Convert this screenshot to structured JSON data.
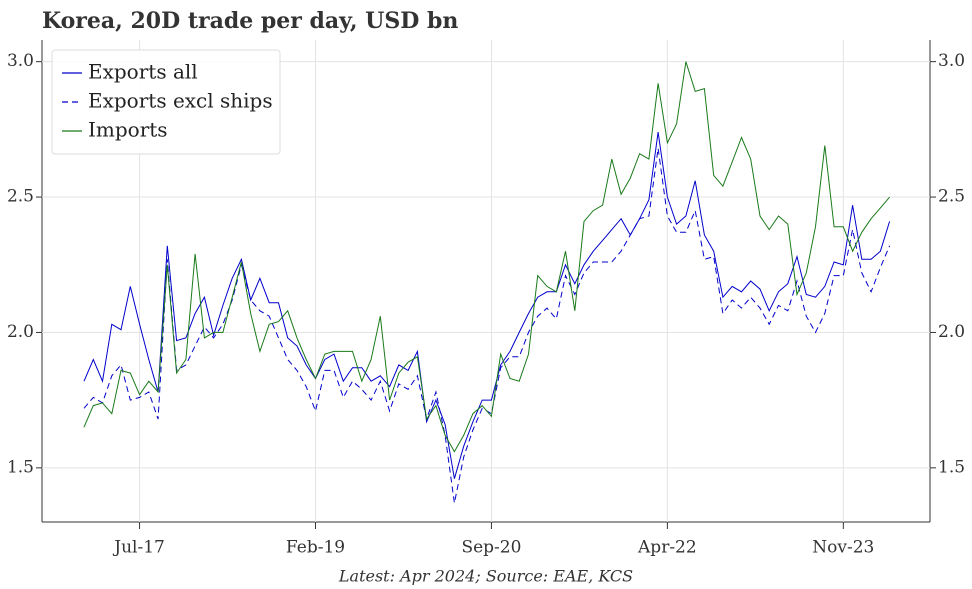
{
  "chart_data": {
    "type": "line",
    "title": "Korea, 20D trade per day, USD bn",
    "footnote": "Latest: Apr 2024; Source: EAE, KCS",
    "x": [
      "Jan-17",
      "Feb-17",
      "Mar-17",
      "Apr-17",
      "May-17",
      "Jun-17",
      "Jul-17",
      "Aug-17",
      "Sep-17",
      "Oct-17",
      "Nov-17",
      "Dec-17",
      "Jan-18",
      "Feb-18",
      "Mar-18",
      "Apr-18",
      "May-18",
      "Jun-18",
      "Jul-18",
      "Aug-18",
      "Sep-18",
      "Oct-18",
      "Nov-18",
      "Dec-18",
      "Jan-19",
      "Feb-19",
      "Mar-19",
      "Apr-19",
      "May-19",
      "Jun-19",
      "Jul-19",
      "Aug-19",
      "Sep-19",
      "Oct-19",
      "Nov-19",
      "Dec-19",
      "Jan-20",
      "Feb-20",
      "Mar-20",
      "Apr-20",
      "May-20",
      "Jun-20",
      "Jul-20",
      "Aug-20",
      "Sep-20",
      "Oct-20",
      "Nov-20",
      "Dec-20",
      "Jan-21",
      "Feb-21",
      "Mar-21",
      "Apr-21",
      "May-21",
      "Jun-21",
      "Jul-21",
      "Aug-21",
      "Sep-21",
      "Oct-21",
      "Nov-21",
      "Dec-21",
      "Jan-22",
      "Feb-22",
      "Mar-22",
      "Apr-22",
      "May-22",
      "Jun-22",
      "Jul-22",
      "Aug-22",
      "Sep-22",
      "Oct-22",
      "Nov-22",
      "Dec-22",
      "Jan-23",
      "Feb-23",
      "Mar-23",
      "Apr-23",
      "May-23",
      "Jun-23",
      "Jul-23",
      "Aug-23",
      "Sep-23",
      "Oct-23",
      "Nov-23",
      "Dec-23",
      "Jan-24",
      "Feb-24",
      "Mar-24",
      "Apr-24"
    ],
    "xticks": [
      "Jul-17",
      "Feb-19",
      "Sep-20",
      "Apr-22",
      "Nov-23"
    ],
    "ylim": [
      1.3,
      3.08
    ],
    "yticks": [
      {
        "value": 1.5,
        "label": "1.5"
      },
      {
        "value": 2,
        "label": "2.0"
      },
      {
        "value": 2.5,
        "label": "2.5"
      },
      {
        "value": 3,
        "label": "3.0"
      }
    ],
    "grid": true,
    "legend": "upper left",
    "series": [
      {
        "name": "Exports all",
        "color": "#0000cc",
        "linestyle": "solid",
        "values": [
          1.82,
          1.9,
          1.82,
          2.03,
          2.01,
          2.17,
          2.03,
          1.9,
          1.78,
          2.32,
          1.97,
          1.98,
          2.07,
          2.13,
          1.99,
          2.1,
          2.2,
          2.27,
          2.12,
          2.2,
          2.11,
          2.11,
          1.98,
          1.95,
          1.88,
          1.83,
          1.9,
          1.92,
          1.82,
          1.87,
          1.87,
          1.82,
          1.84,
          1.8,
          1.88,
          1.86,
          1.93,
          1.67,
          1.75,
          1.66,
          1.46,
          1.58,
          1.67,
          1.75,
          1.75,
          1.88,
          1.93,
          2.0,
          2.07,
          2.13,
          2.15,
          2.15,
          2.25,
          2.18,
          2.25,
          2.3,
          2.34,
          2.38,
          2.42,
          2.36,
          2.42,
          2.49,
          2.74,
          2.5,
          2.4,
          2.43,
          2.56,
          2.36,
          2.3,
          2.13,
          2.17,
          2.15,
          2.19,
          2.16,
          2.08,
          2.15,
          2.18,
          2.28,
          2.14,
          2.13,
          2.17,
          2.26,
          2.25,
          2.47,
          2.27,
          2.27,
          2.3,
          2.41
        ]
      },
      {
        "name": "Exports excl ships",
        "color": "#0000cc",
        "linestyle": "dashed",
        "values": [
          1.72,
          1.76,
          1.74,
          1.84,
          1.88,
          1.75,
          1.76,
          1.78,
          1.68,
          2.27,
          1.86,
          1.88,
          1.95,
          2.02,
          1.98,
          2.03,
          2.12,
          2.25,
          2.12,
          2.08,
          2.06,
          1.98,
          1.9,
          1.86,
          1.8,
          1.71,
          1.86,
          1.86,
          1.76,
          1.82,
          1.79,
          1.75,
          1.82,
          1.71,
          1.81,
          1.79,
          1.84,
          1.68,
          1.78,
          1.62,
          1.37,
          1.54,
          1.64,
          1.72,
          1.7,
          1.87,
          1.91,
          1.91,
          2.0,
          2.06,
          2.09,
          2.05,
          2.21,
          2.14,
          2.22,
          2.26,
          2.26,
          2.26,
          2.3,
          2.36,
          2.42,
          2.43,
          2.68,
          2.43,
          2.37,
          2.37,
          2.45,
          2.27,
          2.28,
          2.07,
          2.12,
          2.09,
          2.13,
          2.09,
          2.03,
          2.1,
          2.08,
          2.19,
          2.06,
          2.0,
          2.07,
          2.21,
          2.21,
          2.38,
          2.22,
          2.15,
          2.24,
          2.32
        ]
      },
      {
        "name": "Imports",
        "color": "#1a7a1a",
        "linestyle": "solid",
        "values": [
          1.65,
          1.73,
          1.74,
          1.7,
          1.86,
          1.85,
          1.77,
          1.82,
          1.78,
          2.25,
          1.85,
          1.9,
          2.29,
          1.98,
          2.0,
          2.0,
          2.13,
          2.26,
          2.07,
          1.93,
          2.03,
          2.04,
          2.08,
          1.98,
          1.9,
          1.83,
          1.92,
          1.93,
          1.93,
          1.93,
          1.82,
          1.9,
          2.06,
          1.75,
          1.85,
          1.89,
          1.91,
          1.68,
          1.73,
          1.62,
          1.56,
          1.62,
          1.7,
          1.73,
          1.69,
          1.92,
          1.83,
          1.82,
          1.92,
          2.21,
          2.17,
          2.15,
          2.3,
          2.08,
          2.41,
          2.45,
          2.47,
          2.64,
          2.51,
          2.57,
          2.66,
          2.64,
          2.92,
          2.7,
          2.77,
          3.0,
          2.89,
          2.9,
          2.58,
          2.54,
          2.63,
          2.72,
          2.64,
          2.43,
          2.38,
          2.43,
          2.4,
          2.14,
          2.22,
          2.39,
          2.69,
          2.39,
          2.39,
          2.3,
          2.37,
          2.42,
          2.46,
          2.5
        ]
      }
    ]
  }
}
